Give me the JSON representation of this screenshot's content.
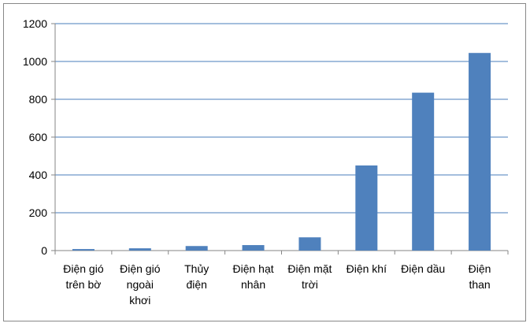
{
  "chart_data": {
    "type": "bar",
    "categories": [
      "Điện gió\ntrên bờ",
      "Điện gió\nngoài\nkhơi",
      "Thủy\nđiện",
      "Điện hạt\nnhân",
      "Điện mặt\ntrời",
      "Điện khí",
      "Điện dầu",
      "Điện\nthan"
    ],
    "values": [
      8,
      12,
      24,
      29,
      70,
      450,
      835,
      1045
    ],
    "color": "#4f81bd",
    "ylim": [
      0,
      1200
    ],
    "yticks": [
      0,
      200,
      400,
      600,
      800,
      1000,
      1200
    ],
    "grid": true
  }
}
